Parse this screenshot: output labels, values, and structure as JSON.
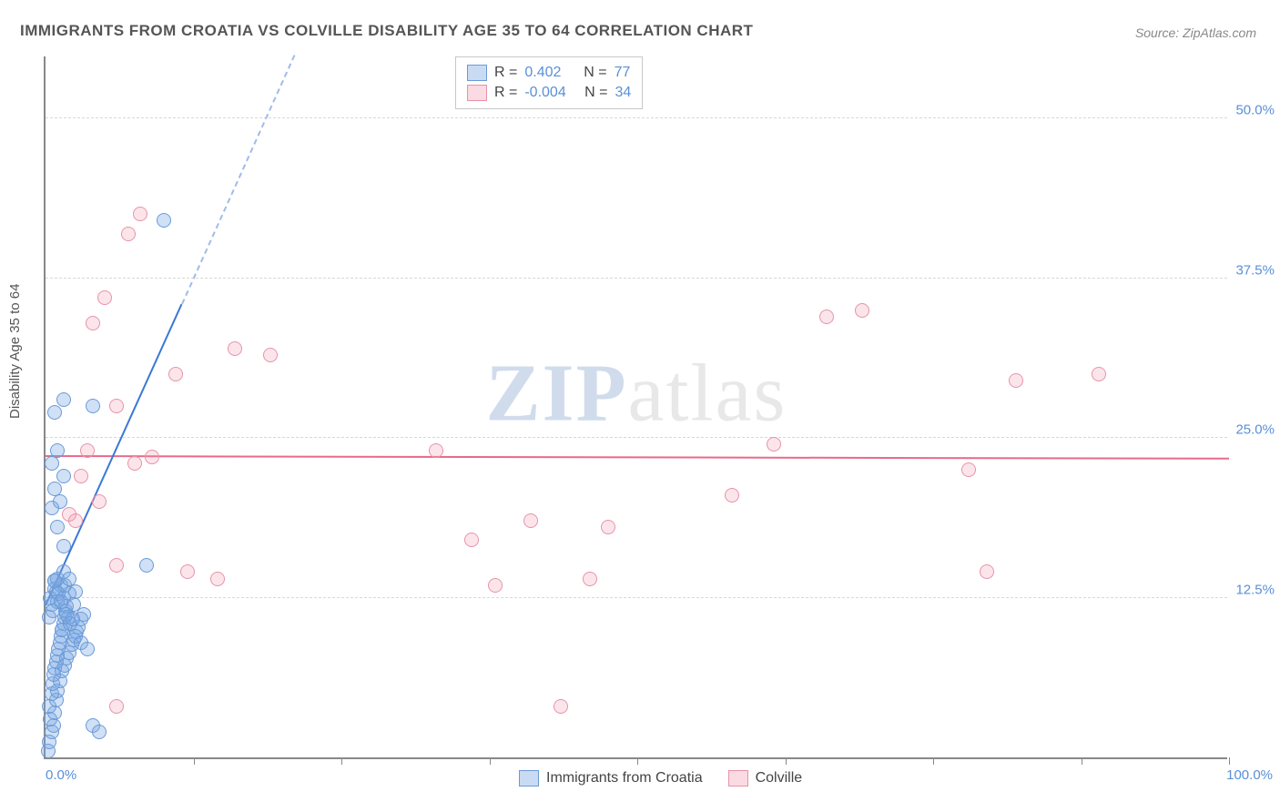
{
  "title": "IMMIGRANTS FROM CROATIA VS COLVILLE DISABILITY AGE 35 TO 64 CORRELATION CHART",
  "source": "Source: ZipAtlas.com",
  "ylabel": "Disability Age 35 to 64",
  "watermark_zip": "ZIP",
  "watermark_atlas": "atlas",
  "chart": {
    "type": "scatter",
    "xlim": [
      0,
      100
    ],
    "ylim": [
      0,
      55
    ],
    "xaxis_min_label": "0.0%",
    "xaxis_max_label": "100.0%",
    "x_ticks": [
      12.5,
      25,
      37.5,
      50,
      62.5,
      75,
      87.5,
      100
    ],
    "y_gridlines": [
      12.5,
      25,
      37.5,
      50
    ],
    "y_tick_labels": [
      "12.5%",
      "25.0%",
      "37.5%",
      "50.0%"
    ],
    "background_color": "#ffffff",
    "grid_color": "#d8d8d8",
    "axis_color": "#888888",
    "point_radius": 8,
    "series": [
      {
        "name": "Immigrants from Croatia",
        "color_fill": "rgba(120,165,225,0.35)",
        "color_stroke": "#6a9ad8",
        "R": "0.402",
        "N": "77",
        "regression": {
          "slope": 2.05,
          "intercept": 11.8,
          "color": "#3a78d6"
        },
        "points": [
          [
            0.2,
            0.5
          ],
          [
            0.3,
            1.2
          ],
          [
            0.5,
            2.0
          ],
          [
            0.7,
            2.5
          ],
          [
            0.4,
            3.0
          ],
          [
            0.8,
            3.5
          ],
          [
            0.3,
            4.0
          ],
          [
            0.9,
            4.5
          ],
          [
            0.5,
            5.0
          ],
          [
            1.0,
            5.2
          ],
          [
            0.6,
            5.8
          ],
          [
            1.2,
            6.0
          ],
          [
            0.7,
            6.5
          ],
          [
            1.4,
            6.8
          ],
          [
            0.8,
            7.0
          ],
          [
            1.6,
            7.2
          ],
          [
            0.9,
            7.5
          ],
          [
            1.8,
            7.8
          ],
          [
            1.0,
            8.0
          ],
          [
            2.0,
            8.2
          ],
          [
            1.1,
            8.5
          ],
          [
            2.2,
            8.8
          ],
          [
            1.2,
            9.0
          ],
          [
            2.4,
            9.2
          ],
          [
            1.3,
            9.5
          ],
          [
            2.6,
            9.8
          ],
          [
            1.4,
            10.0
          ],
          [
            2.8,
            10.2
          ],
          [
            1.5,
            10.5
          ],
          [
            3.0,
            10.8
          ],
          [
            1.6,
            11.0
          ],
          [
            3.2,
            11.2
          ],
          [
            1.7,
            11.5
          ],
          [
            0.5,
            12.0
          ],
          [
            1.0,
            12.2
          ],
          [
            1.5,
            12.5
          ],
          [
            2.0,
            12.8
          ],
          [
            2.5,
            13.0
          ],
          [
            0.8,
            13.2
          ],
          [
            1.3,
            13.5
          ],
          [
            1.8,
            11.8
          ],
          [
            0.4,
            12.5
          ],
          [
            0.9,
            13.0
          ],
          [
            1.4,
            10.0
          ],
          [
            1.9,
            11.0
          ],
          [
            2.4,
            12.0
          ],
          [
            0.6,
            11.5
          ],
          [
            1.1,
            12.8
          ],
          [
            1.6,
            13.5
          ],
          [
            2.1,
            10.5
          ],
          [
            0.3,
            11.0
          ],
          [
            0.8,
            13.8
          ],
          [
            1.3,
            12.2
          ],
          [
            1.8,
            11.2
          ],
          [
            2.3,
            10.8
          ],
          [
            8.5,
            15.0
          ],
          [
            1.5,
            16.5
          ],
          [
            1.0,
            18.0
          ],
          [
            0.5,
            19.5
          ],
          [
            1.2,
            20.0
          ],
          [
            0.8,
            21.0
          ],
          [
            1.5,
            22.0
          ],
          [
            0.5,
            23.0
          ],
          [
            1.0,
            24.0
          ],
          [
            0.8,
            27.0
          ],
          [
            1.5,
            28.0
          ],
          [
            4.0,
            27.5
          ],
          [
            10.0,
            42.0
          ],
          [
            1.0,
            14.0
          ],
          [
            1.5,
            14.5
          ],
          [
            2.0,
            14.0
          ],
          [
            0.8,
            13.8
          ],
          [
            2.5,
            9.5
          ],
          [
            3.0,
            9.0
          ],
          [
            3.5,
            8.5
          ],
          [
            4.0,
            2.5
          ],
          [
            4.5,
            2.0
          ]
        ]
      },
      {
        "name": "Colville",
        "color_fill": "rgba(240,150,175,0.25)",
        "color_stroke": "#e892a8",
        "R": "-0.004",
        "N": "34",
        "regression": {
          "slope": -0.002,
          "intercept": 23.5,
          "color": "#e86a8a"
        },
        "points": [
          [
            2.0,
            19.0
          ],
          [
            3.0,
            22.0
          ],
          [
            4.0,
            34.0
          ],
          [
            5.0,
            36.0
          ],
          [
            6.0,
            27.5
          ],
          [
            7.0,
            41.0
          ],
          [
            8.0,
            42.5
          ],
          [
            9.0,
            23.5
          ],
          [
            11.0,
            30.0
          ],
          [
            12.0,
            14.5
          ],
          [
            6.0,
            15.0
          ],
          [
            3.5,
            24.0
          ],
          [
            16.0,
            32.0
          ],
          [
            19.0,
            31.5
          ],
          [
            14.5,
            14.0
          ],
          [
            33.0,
            24.0
          ],
          [
            36.0,
            17.0
          ],
          [
            38.0,
            13.5
          ],
          [
            41.0,
            18.5
          ],
          [
            43.5,
            4.0
          ],
          [
            46.0,
            14.0
          ],
          [
            47.5,
            18.0
          ],
          [
            58.0,
            20.5
          ],
          [
            61.5,
            24.5
          ],
          [
            66.0,
            34.5
          ],
          [
            69.0,
            35.0
          ],
          [
            78.0,
            22.5
          ],
          [
            79.5,
            14.5
          ],
          [
            82.0,
            29.5
          ],
          [
            89.0,
            30.0
          ],
          [
            6.0,
            4.0
          ],
          [
            2.5,
            18.5
          ],
          [
            4.5,
            20.0
          ],
          [
            7.5,
            23.0
          ]
        ]
      }
    ]
  },
  "legend_top": {
    "R_label": "R =",
    "N_label": "N ="
  },
  "legend_bottom": {
    "s1": "Immigrants from Croatia",
    "s2": "Colville"
  }
}
